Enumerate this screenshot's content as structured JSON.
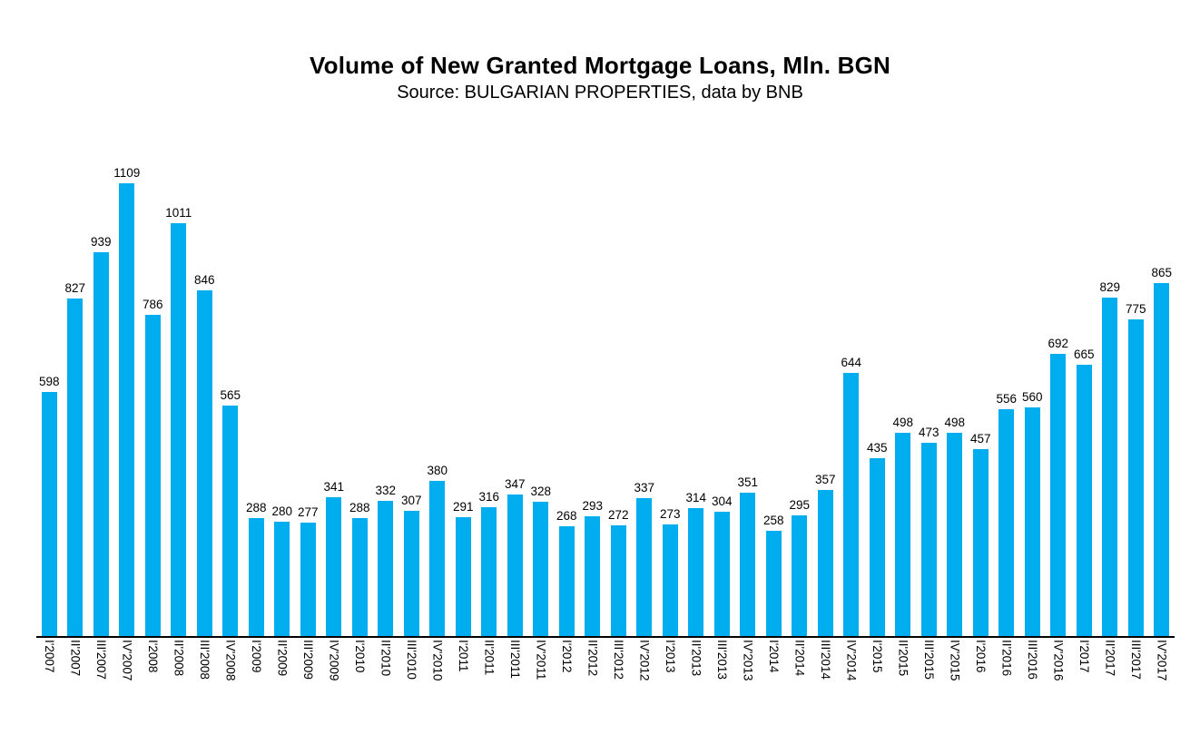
{
  "chart_data": {
    "type": "bar",
    "title": "Volume of New Granted Mortgage Loans, Mln. BGN",
    "subtitle": "Source: BULGARIAN PROPERTIES, data by BNB",
    "categories": [
      "I'2007",
      "II'2007",
      "III'2007",
      "IV'2007",
      "I'2008",
      "II'2008",
      "III'2008",
      "IV'2008",
      "I'2009",
      "II'2009",
      "III'2009",
      "IV'2009",
      "I'2010",
      "II'2010",
      "III'2010",
      "IV'2010",
      "I'2011",
      "II'2011",
      "III'2011",
      "IV'2011",
      "I'2012",
      "II'2012",
      "III'2012",
      "IV'2012",
      "I'2013",
      "II'2013",
      "III'2013",
      "IV'2013",
      "I'2014",
      "II'2014",
      "III'2014",
      "IV'2014",
      "I'2015",
      "II'2015",
      "III'2015",
      "IV'2015",
      "I'2016",
      "II'2016",
      "III'2016",
      "IV'2016",
      "I'2017",
      "II'2017",
      "III'2017",
      "IV'2017"
    ],
    "values": [
      598,
      827,
      939,
      1109,
      786,
      1011,
      846,
      565,
      288,
      280,
      277,
      341,
      288,
      332,
      307,
      380,
      291,
      316,
      347,
      328,
      268,
      293,
      272,
      337,
      273,
      314,
      304,
      351,
      258,
      295,
      357,
      644,
      435,
      498,
      473,
      498,
      457,
      556,
      560,
      692,
      665,
      829,
      775,
      865
    ],
    "xlabel": "",
    "ylabel": "",
    "ylim": [
      0,
      1200
    ],
    "bar_color": "#00AEEF",
    "axis_color": "#000000",
    "text_color": "#000000",
    "value_labels_shown": true,
    "grid": "off",
    "legend": "none"
  }
}
